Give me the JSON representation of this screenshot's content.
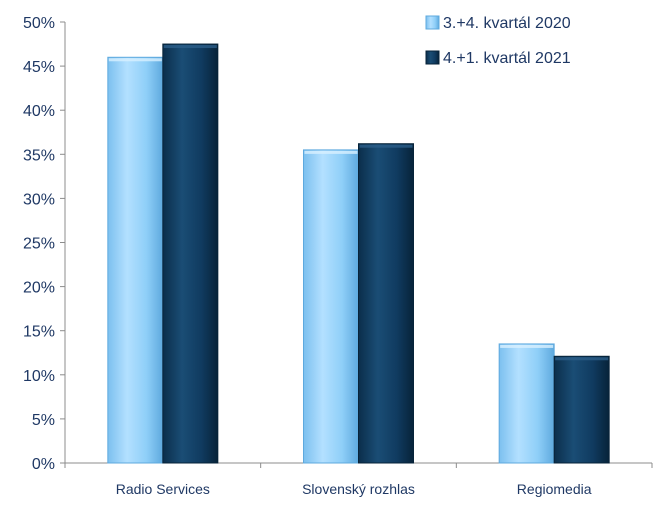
{
  "chart_data": {
    "type": "bar",
    "title": "",
    "xlabel": "",
    "ylabel": "",
    "categories": [
      "Radio Services",
      "Slovenský rozhlas",
      "Regiomedia"
    ],
    "series": [
      {
        "name": "3.+4. kvartál 2020",
        "values": [
          46,
          35.5,
          13.5
        ],
        "color": "#8dccf7"
      },
      {
        "name": "4.+1. kvartál 2021",
        "values": [
          47.5,
          36.2,
          12.1
        ],
        "color": "#0f3a5c"
      }
    ],
    "ylim": [
      0,
      50
    ],
    "yticks": [
      "0%",
      "5%",
      "10%",
      "15%",
      "20%",
      "25%",
      "30%",
      "35%",
      "40%",
      "45%",
      "50%"
    ],
    "grid": false,
    "legend_position": "top-right"
  }
}
